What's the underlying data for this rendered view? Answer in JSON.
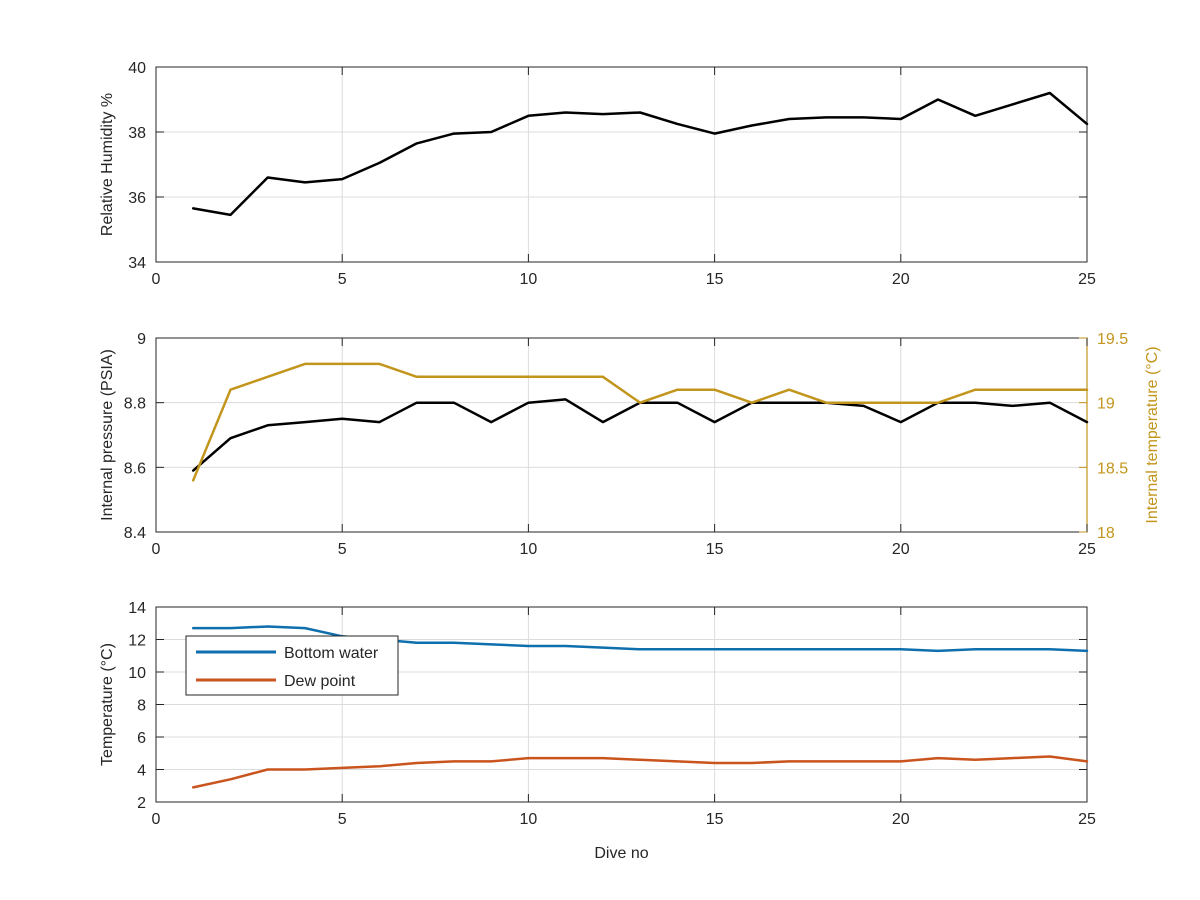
{
  "colors": {
    "humidity": "#000000",
    "pressure": "#000000",
    "internal_temp": "#c2951c",
    "bottom_water": "#0f6fad",
    "dew_point": "#c9541d",
    "grid": "#dcdcdc",
    "axis": "#262626"
  },
  "chart_data": [
    {
      "type": "line",
      "title": "",
      "xlabel": "",
      "ylabel": "Relative Humidity %",
      "xlim": [
        0,
        25
      ],
      "ylim": [
        34,
        40
      ],
      "xticks": [
        0,
        5,
        10,
        15,
        20,
        25
      ],
      "yticks": [
        34,
        36,
        38,
        40
      ],
      "grid": true,
      "series": [
        {
          "color_key": "humidity",
          "x": [
            1,
            2,
            3,
            4,
            5,
            6,
            7,
            8,
            9,
            10,
            11,
            12,
            13,
            14,
            15,
            16,
            17,
            18,
            19,
            20,
            21,
            22,
            23,
            24,
            25
          ],
          "values": [
            35.65,
            35.45,
            36.6,
            36.45,
            36.55,
            37.05,
            37.65,
            37.95,
            38.0,
            38.5,
            38.6,
            38.55,
            38.6,
            38.25,
            37.95,
            38.2,
            38.4,
            38.45,
            38.45,
            38.4,
            39.0,
            38.5,
            38.85,
            39.2,
            38.25
          ]
        }
      ]
    },
    {
      "type": "line",
      "title": "",
      "xlabel": "",
      "ylabel": "Internal pressure (PSIA)",
      "ylabel_right": "Internal temperature (°C)",
      "xlim": [
        0,
        25
      ],
      "ylim": [
        8.4,
        9
      ],
      "ylim_right": [
        18,
        19.5
      ],
      "xticks": [
        0,
        5,
        10,
        15,
        20,
        25
      ],
      "yticks": [
        8.4,
        8.6,
        8.8,
        9
      ],
      "yticks_right": [
        18,
        18.5,
        19,
        19.5
      ],
      "grid": true,
      "series": [
        {
          "color_key": "pressure",
          "axis": "left",
          "x": [
            1,
            2,
            3,
            4,
            5,
            6,
            7,
            8,
            9,
            10,
            11,
            12,
            13,
            14,
            15,
            16,
            17,
            18,
            19,
            20,
            21,
            22,
            23,
            24,
            25
          ],
          "values": [
            8.59,
            8.69,
            8.73,
            8.74,
            8.75,
            8.74,
            8.8,
            8.8,
            8.74,
            8.8,
            8.81,
            8.74,
            8.8,
            8.8,
            8.74,
            8.8,
            8.8,
            8.8,
            8.79,
            8.74,
            8.8,
            8.8,
            8.79,
            8.8,
            8.74
          ]
        },
        {
          "color_key": "internal_temp",
          "axis": "right",
          "x": [
            1,
            2,
            3,
            4,
            5,
            6,
            7,
            8,
            9,
            10,
            11,
            12,
            13,
            14,
            15,
            16,
            17,
            18,
            19,
            20,
            21,
            22,
            23,
            24,
            25
          ],
          "values": [
            18.4,
            19.1,
            19.2,
            19.3,
            19.3,
            19.3,
            19.2,
            19.2,
            19.2,
            19.2,
            19.2,
            19.2,
            19.0,
            19.1,
            19.1,
            19.0,
            19.1,
            19.0,
            19.0,
            19.0,
            19.0,
            19.1,
            19.1,
            19.1,
            19.1
          ]
        }
      ]
    },
    {
      "type": "line",
      "title": "",
      "xlabel": "Dive no",
      "ylabel": "Temperature (°C)",
      "xlim": [
        0,
        25
      ],
      "ylim": [
        2,
        14
      ],
      "xticks": [
        0,
        5,
        10,
        15,
        20,
        25
      ],
      "yticks": [
        2,
        4,
        6,
        8,
        10,
        12,
        14
      ],
      "grid": true,
      "legend": "top-left",
      "series": [
        {
          "name": "Bottom water",
          "color_key": "bottom_water",
          "x": [
            1,
            2,
            3,
            4,
            5,
            6,
            7,
            8,
            9,
            10,
            11,
            12,
            13,
            14,
            15,
            16,
            17,
            18,
            19,
            20,
            21,
            22,
            23,
            24,
            25
          ],
          "values": [
            12.7,
            12.7,
            12.8,
            12.7,
            12.2,
            12.0,
            11.8,
            11.8,
            11.7,
            11.6,
            11.6,
            11.5,
            11.4,
            11.4,
            11.4,
            11.4,
            11.4,
            11.4,
            11.4,
            11.4,
            11.3,
            11.4,
            11.4,
            11.4,
            11.3
          ]
        },
        {
          "name": "Dew point",
          "color_key": "dew_point",
          "x": [
            1,
            2,
            3,
            4,
            5,
            6,
            7,
            8,
            9,
            10,
            11,
            12,
            13,
            14,
            15,
            16,
            17,
            18,
            19,
            20,
            21,
            22,
            23,
            24,
            25
          ],
          "values": [
            2.9,
            3.4,
            4.0,
            4.0,
            4.1,
            4.2,
            4.4,
            4.5,
            4.5,
            4.7,
            4.7,
            4.7,
            4.6,
            4.5,
            4.4,
            4.4,
            4.5,
            4.5,
            4.5,
            4.5,
            4.7,
            4.6,
            4.7,
            4.8,
            4.5
          ]
        }
      ]
    }
  ]
}
